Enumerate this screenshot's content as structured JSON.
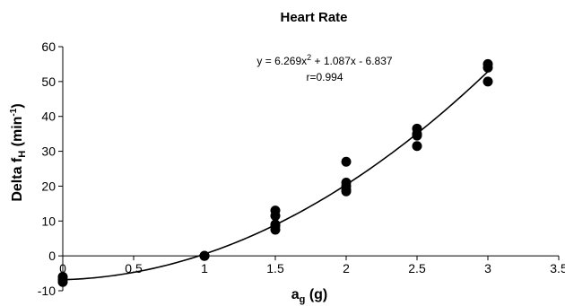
{
  "chart_data": {
    "type": "scatter",
    "title": "Heart Rate",
    "xlabel": {
      "main": "a",
      "sub": "g",
      "rest": " (g)"
    },
    "ylabel": {
      "main": "Delta f",
      "sub": "H",
      "rest": " (min",
      "sup": "-1",
      "close": ")"
    },
    "xlim": [
      0,
      3.5
    ],
    "ylim": [
      -10,
      60
    ],
    "x_ticks": [
      0,
      0.5,
      1,
      1.5,
      2,
      2.5,
      3,
      3.5
    ],
    "y_ticks": [
      -10,
      0,
      10,
      20,
      30,
      40,
      50,
      60
    ],
    "x_tick_labels": [
      "0",
      "0.5",
      "1",
      "1.5",
      "2",
      "2.5",
      "3",
      "3.5"
    ],
    "y_tick_labels": [
      "-10",
      "0",
      "10",
      "20",
      "30",
      "40",
      "50",
      "60"
    ],
    "grid": false,
    "points": [
      {
        "x": 0,
        "y": -6
      },
      {
        "x": 0,
        "y": -6.8
      },
      {
        "x": 0,
        "y": -7.5
      },
      {
        "x": 1,
        "y": 0
      },
      {
        "x": 1,
        "y": 0
      },
      {
        "x": 1,
        "y": 0
      },
      {
        "x": 1.5,
        "y": 13
      },
      {
        "x": 1.5,
        "y": 11.5
      },
      {
        "x": 1.5,
        "y": 9
      },
      {
        "x": 1.5,
        "y": 8.5
      },
      {
        "x": 1.5,
        "y": 7.5
      },
      {
        "x": 2,
        "y": 27
      },
      {
        "x": 2,
        "y": 21
      },
      {
        "x": 2,
        "y": 20
      },
      {
        "x": 2,
        "y": 19
      },
      {
        "x": 2,
        "y": 18.5
      },
      {
        "x": 2.5,
        "y": 36.5
      },
      {
        "x": 2.5,
        "y": 35
      },
      {
        "x": 2.5,
        "y": 34.5
      },
      {
        "x": 2.5,
        "y": 31.5
      },
      {
        "x": 3,
        "y": 55
      },
      {
        "x": 3,
        "y": 54
      },
      {
        "x": 3,
        "y": 50
      }
    ],
    "fit": {
      "a": 6.269,
      "b": 1.087,
      "c": -6.837,
      "x_range": [
        0,
        3
      ]
    },
    "annotations": {
      "equation_parts": [
        "y = 6.269x",
        "2",
        " + 1.087x - 6.837"
      ],
      "r_value": "r=0.994"
    },
    "colors": {
      "marker": "#000000",
      "line": "#000000",
      "axis": "#000000"
    }
  }
}
